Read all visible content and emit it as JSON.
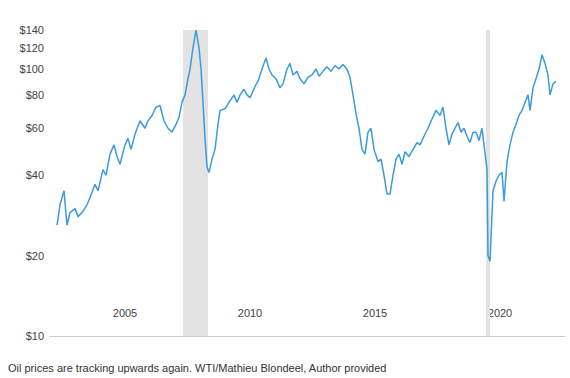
{
  "chart_data": {
    "type": "line",
    "caption": "Oil prices are tracking upwards again. WTI/Mathieu Blondeel, Author provided",
    "color": "#3b9bdb",
    "log": "y",
    "grid": false,
    "xlim": [
      2002.0,
      2022.6
    ],
    "ylim": [
      10,
      140
    ],
    "xticks": [
      2005,
      2010,
      2015,
      2020
    ],
    "yticks": [
      {
        "value": 10,
        "label": "$10"
      },
      {
        "value": 20,
        "label": "$20"
      },
      {
        "value": 40,
        "label": "$40"
      },
      {
        "value": 60,
        "label": "$60"
      },
      {
        "value": 80,
        "label": "$80"
      },
      {
        "value": 100,
        "label": "$100"
      },
      {
        "value": 120,
        "label": "$120"
      },
      {
        "value": 140,
        "label": "$140"
      }
    ],
    "shaded_periods": [
      [
        2007.32,
        2008.32
      ],
      [
        2019.44,
        2019.6
      ]
    ],
    "x": [
      2002.28,
      2002.4,
      2002.56,
      2002.68,
      2002.8,
      2003.0,
      2003.12,
      2003.28,
      2003.48,
      2003.6,
      2003.8,
      2003.92,
      2004.12,
      2004.24,
      2004.4,
      2004.56,
      2004.68,
      2004.8,
      2005.0,
      2005.12,
      2005.24,
      2005.4,
      2005.6,
      2005.8,
      2005.92,
      2006.08,
      2006.24,
      2006.4,
      2006.56,
      2006.72,
      2006.88,
      2007.04,
      2007.16,
      2007.28,
      2007.4,
      2007.52,
      2007.6,
      2007.72,
      2007.84,
      2007.96,
      2008.04,
      2008.12,
      2008.2,
      2008.28,
      2008.36,
      2008.48,
      2008.6,
      2008.72,
      2008.8,
      2009.0,
      2009.2,
      2009.36,
      2009.48,
      2009.6,
      2009.76,
      2009.88,
      2010.0,
      2010.2,
      2010.32,
      2010.48,
      2010.64,
      2010.76,
      2010.88,
      2011.04,
      2011.2,
      2011.32,
      2011.48,
      2011.6,
      2011.72,
      2011.88,
      2012.0,
      2012.16,
      2012.32,
      2012.48,
      2012.64,
      2012.76,
      2012.92,
      2013.08,
      2013.24,
      2013.4,
      2013.56,
      2013.72,
      2013.88,
      2014.0,
      2014.12,
      2014.24,
      2014.36,
      2014.48,
      2014.6,
      2014.72,
      2014.84,
      2014.96,
      2015.12,
      2015.24,
      2015.36,
      2015.48,
      2015.6,
      2015.72,
      2015.84,
      2015.96,
      2016.08,
      2016.2,
      2016.36,
      2016.52,
      2016.68,
      2016.8,
      2016.96,
      2017.12,
      2017.28,
      2017.44,
      2017.6,
      2017.72,
      2017.84,
      2017.96,
      2018.08,
      2018.2,
      2018.32,
      2018.44,
      2018.56,
      2018.68,
      2018.8,
      2018.92,
      2019.04,
      2019.16,
      2019.28,
      2019.36,
      2019.48,
      2019.52,
      2019.6,
      2019.72,
      2019.84,
      2019.96,
      2020.08,
      2020.16,
      2020.28,
      2020.4,
      2020.52,
      2020.64,
      2020.76,
      2020.88,
      2021.0,
      2021.12,
      2021.2,
      2021.32,
      2021.44,
      2021.56,
      2021.68,
      2021.8,
      2021.92,
      2022.0,
      2022.12,
      2022.24
    ],
    "values": [
      26,
      31,
      35,
      26,
      29,
      30,
      28,
      29,
      31,
      33,
      37,
      35,
      42,
      40,
      48,
      52,
      47,
      44,
      52,
      55,
      50,
      57,
      64,
      60,
      64,
      67,
      72,
      73,
      64,
      60,
      58,
      62,
      66,
      75,
      80,
      92,
      100,
      120,
      140,
      120,
      100,
      75,
      55,
      43,
      41,
      46,
      50,
      62,
      70,
      71,
      76,
      80,
      75,
      80,
      84,
      80,
      78,
      86,
      90,
      100,
      110,
      100,
      95,
      92,
      85,
      88,
      100,
      105,
      95,
      98,
      92,
      88,
      93,
      95,
      100,
      94,
      98,
      102,
      98,
      103,
      100,
      104,
      100,
      93,
      80,
      68,
      60,
      50,
      48,
      58,
      60,
      50,
      45,
      46,
      40,
      34,
      34,
      40,
      46,
      48,
      44,
      49,
      47,
      50,
      53,
      52,
      56,
      60,
      65,
      70,
      67,
      72,
      60,
      52,
      57,
      60,
      63,
      58,
      60,
      56,
      53,
      58,
      58,
      54,
      60,
      52,
      42,
      20,
      19,
      35,
      38,
      40,
      41,
      32,
      45,
      52,
      58,
      62,
      67,
      70,
      75,
      80,
      70,
      85,
      92,
      100,
      113,
      105,
      95,
      80,
      88,
      90
    ]
  }
}
